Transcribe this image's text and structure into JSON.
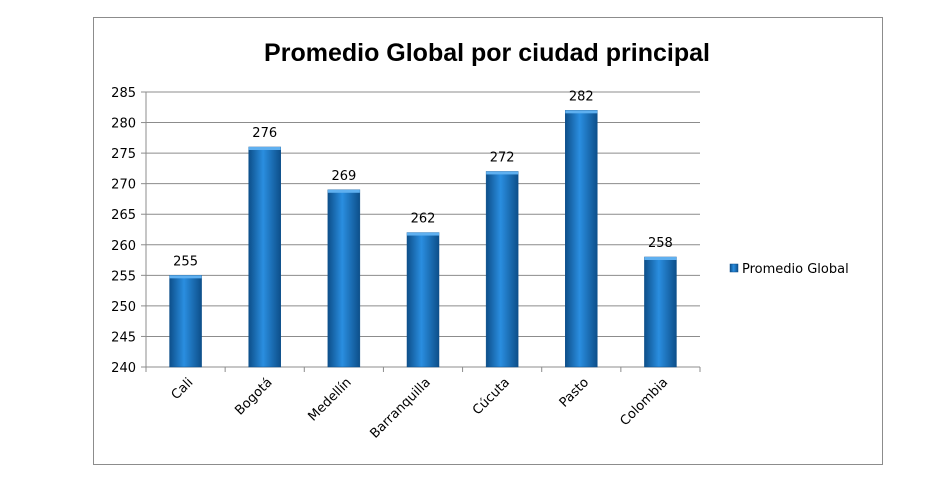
{
  "chart_data": {
    "type": "bar",
    "title": "Promedio Global por ciudad principal",
    "xlabel": "",
    "ylabel": "",
    "categories": [
      "Cali",
      "Bogotá",
      "Medellín",
      "Barranquilla",
      "Cúcuta",
      "Pasto",
      "Colombia"
    ],
    "series": [
      {
        "name": "Promedio Global",
        "values": [
          255,
          276,
          269,
          262,
          272,
          282,
          258
        ],
        "color": "#1f7ecb"
      }
    ],
    "ylim": [
      240,
      285
    ],
    "yticks": [
      240,
      245,
      250,
      255,
      260,
      265,
      270,
      275,
      280,
      285
    ],
    "grid": true,
    "data_labels": true,
    "legend_position": "right"
  }
}
